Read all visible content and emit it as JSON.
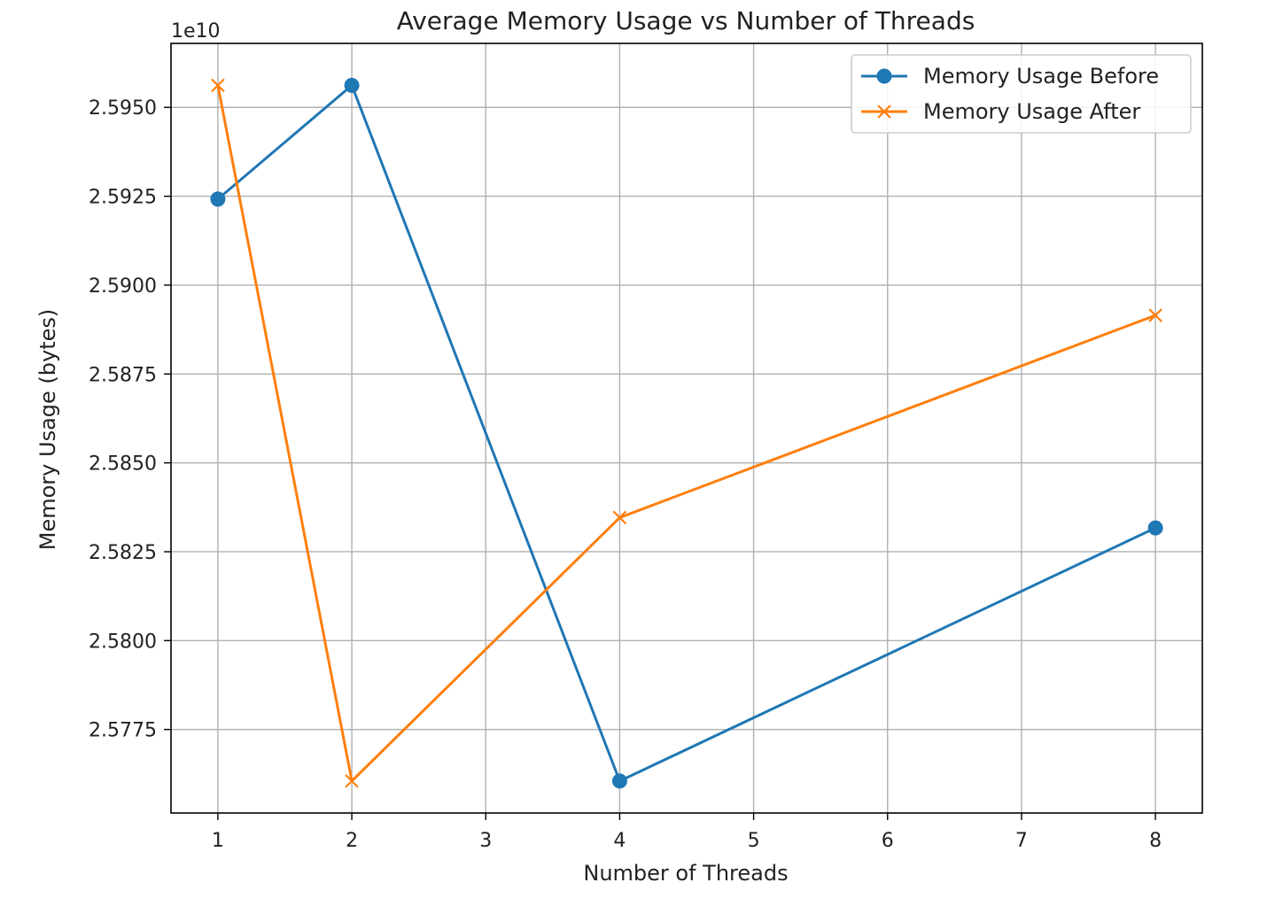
{
  "chart_data": {
    "type": "line",
    "title": "Average Memory Usage vs Number of Threads",
    "xlabel": "Number of Threads",
    "ylabel": "Memory Usage (bytes)",
    "y_offset_label": "1e10",
    "x": [
      1,
      2,
      4,
      8
    ],
    "xlim": [
      0.65,
      8.35
    ],
    "ylim": [
      25.7515,
      25.968
    ],
    "xticks": [
      1,
      2,
      3,
      4,
      5,
      6,
      7,
      8
    ],
    "yticks": [
      25.775,
      25.8,
      25.825,
      25.85,
      25.875,
      25.9,
      25.925,
      25.95
    ],
    "ytick_labels": [
      "2.5775",
      "2.5800",
      "2.5825",
      "2.5850",
      "2.5875",
      "2.5900",
      "2.5925",
      "2.5950"
    ],
    "grid": true,
    "legend_position": "top-right",
    "series": [
      {
        "name": "Memory Usage Before",
        "marker": "circle",
        "color": "#1f77b4",
        "values": [
          25.9242,
          25.9562,
          25.7605,
          25.8317
        ]
      },
      {
        "name": "Memory Usage After",
        "marker": "x",
        "color": "#ff7f0e",
        "values": [
          25.9562,
          25.7605,
          25.8346,
          25.8915
        ]
      }
    ]
  }
}
